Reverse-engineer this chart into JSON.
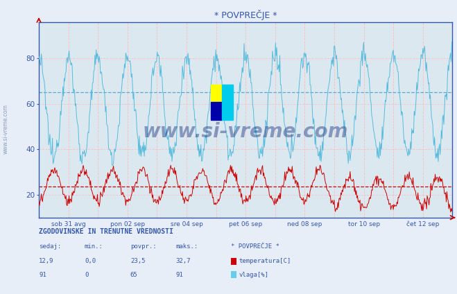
{
  "title": "* POVPREČJE *",
  "fig_bg_color": "#e8eef8",
  "plot_bg_color": "#dce8f0",
  "grid_color": "#ffbbbb",
  "avg_temp_color": "#cc0000",
  "avg_humidity_color": "#55aacc",
  "temp_color": "#cc0000",
  "humidity_color": "#55bbdd",
  "spine_color": "#3355aa",
  "temp_avg": 23.5,
  "humidity_avg": 65,
  "ylim_min": 10,
  "ylim_max": 96,
  "yticks": [
    20,
    40,
    60,
    80
  ],
  "xlabel_ticks": [
    "sob 31 avg",
    "pon 02 sep",
    "sre 04 sep",
    "pet 06 sep",
    "ned 08 sep",
    "tor 10 sep",
    "čet 12 sep"
  ],
  "n_days": 14,
  "points_per_day": 48,
  "watermark": "www.si-vreme.com",
  "watermark_color": "#1a3580",
  "watermark_alpha": 0.45,
  "footer_title": "ZGODOVINSKE IN TRENUTNE VREDNOSTI",
  "footer_headers": [
    "sedaj:",
    "min.:",
    "povpr.:",
    "maks.:",
    "* POVPREČJE *"
  ],
  "footer_temp_vals": [
    "12,9",
    "0,0",
    "23,5",
    "32,7"
  ],
  "footer_temp_label": "temperatura[C]",
  "footer_humidity_vals": [
    "91",
    "0",
    "65",
    "91"
  ],
  "footer_humidity_label": "vlaga[%]",
  "legend_temp_color": "#cc0000",
  "legend_humidity_color": "#66ccee",
  "text_color": "#3355aa",
  "val_color": "#3355aa"
}
